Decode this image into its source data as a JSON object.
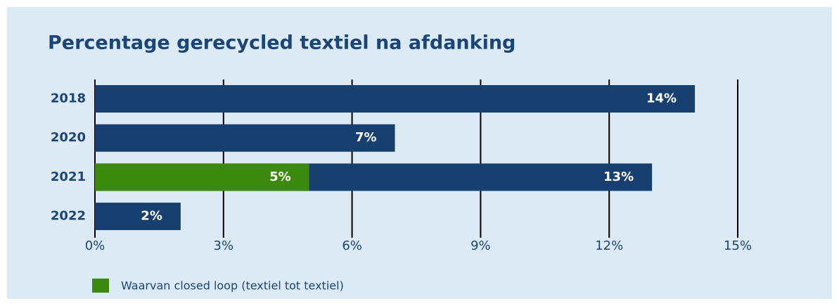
{
  "chart_data": {
    "type": "bar",
    "orientation": "horizontal",
    "title": "Percentage gerecycled textiel na afdanking",
    "categories": [
      "2018",
      "2020",
      "2021",
      "2022"
    ],
    "series": [
      {
        "color": "#173f70",
        "values": [
          14,
          7,
          13,
          2
        ],
        "value_labels": [
          "14%",
          "7%",
          "13%",
          "2%"
        ]
      },
      {
        "name": "Waarvan closed loop (textiel tot textiel)",
        "color": "#3b8a0e",
        "values": [
          null,
          null,
          5,
          null
        ],
        "value_labels": [
          null,
          null,
          "5%",
          null
        ]
      }
    ],
    "xlim": [
      0,
      15
    ],
    "xticks": [
      {
        "value": 0,
        "label": "0%"
      },
      {
        "value": 3,
        "label": "3%"
      },
      {
        "value": 6,
        "label": "6%"
      },
      {
        "value": 9,
        "label": "9%"
      },
      {
        "value": 12,
        "label": "12%"
      },
      {
        "value": 15,
        "label": "15%"
      }
    ],
    "grid": true
  }
}
